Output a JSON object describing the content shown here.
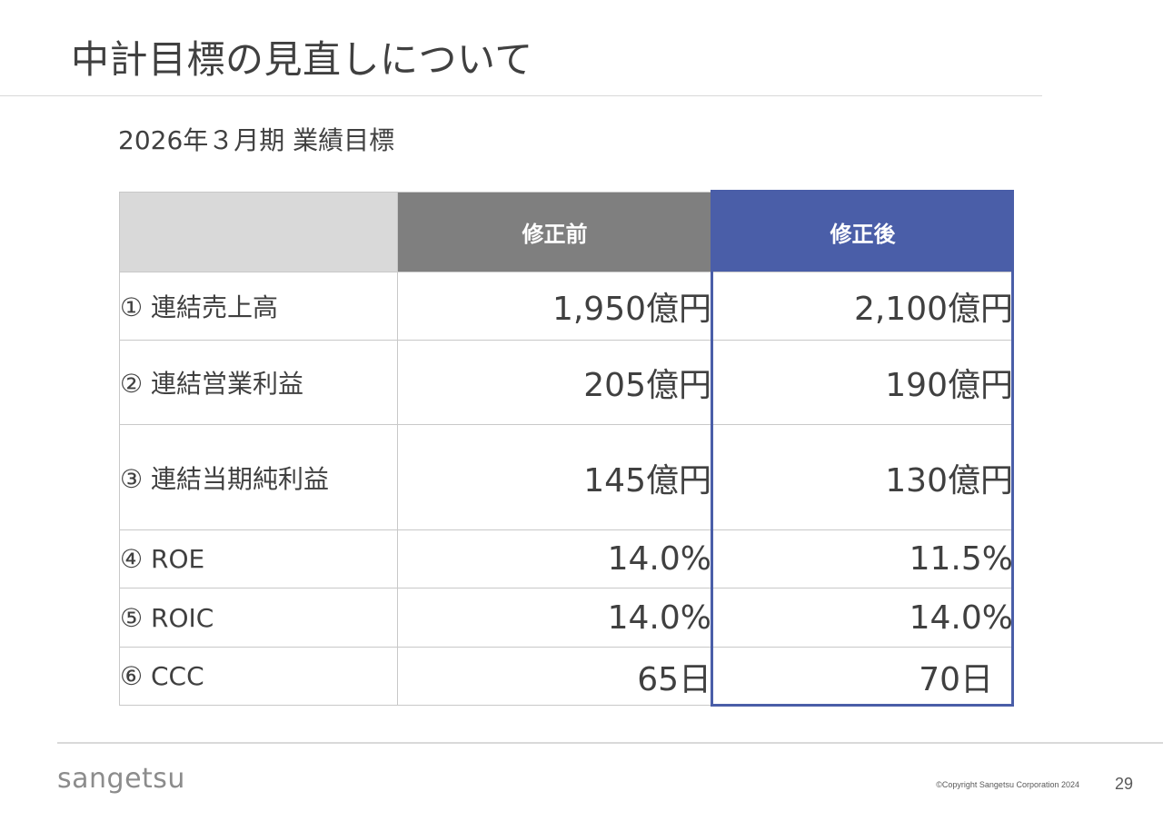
{
  "title": "中計目標の見直しについて",
  "section_heading": "2026年３月期 業績目標",
  "table": {
    "header": {
      "corner": "",
      "before": "修正前",
      "after": "修正後"
    },
    "rows": [
      {
        "label": "① 連結売上高",
        "before": "1,950億円",
        "after": "2,100億円"
      },
      {
        "label": "② 連結営業利益",
        "before": "205億円",
        "after": "190億円"
      },
      {
        "label": "③ 連結当期純利益",
        "before": "145億円",
        "after": "130億円"
      },
      {
        "label": "④ ROE",
        "before": "14.0%",
        "after": "11.5%"
      },
      {
        "label": "⑤ ROIC",
        "before": "14.0%",
        "after": "14.0%"
      },
      {
        "label": "⑥ CCC",
        "before": "65日",
        "after": "70日"
      }
    ]
  },
  "footer": {
    "logo_text": "sangetsu",
    "copyright": "©Copyright Sangetsu Corporation 2024",
    "page_number": "29"
  },
  "colors": {
    "before_header": "#7f7f7f",
    "after_header": "#4a5ea8",
    "corner_header": "#d9d9d9"
  }
}
